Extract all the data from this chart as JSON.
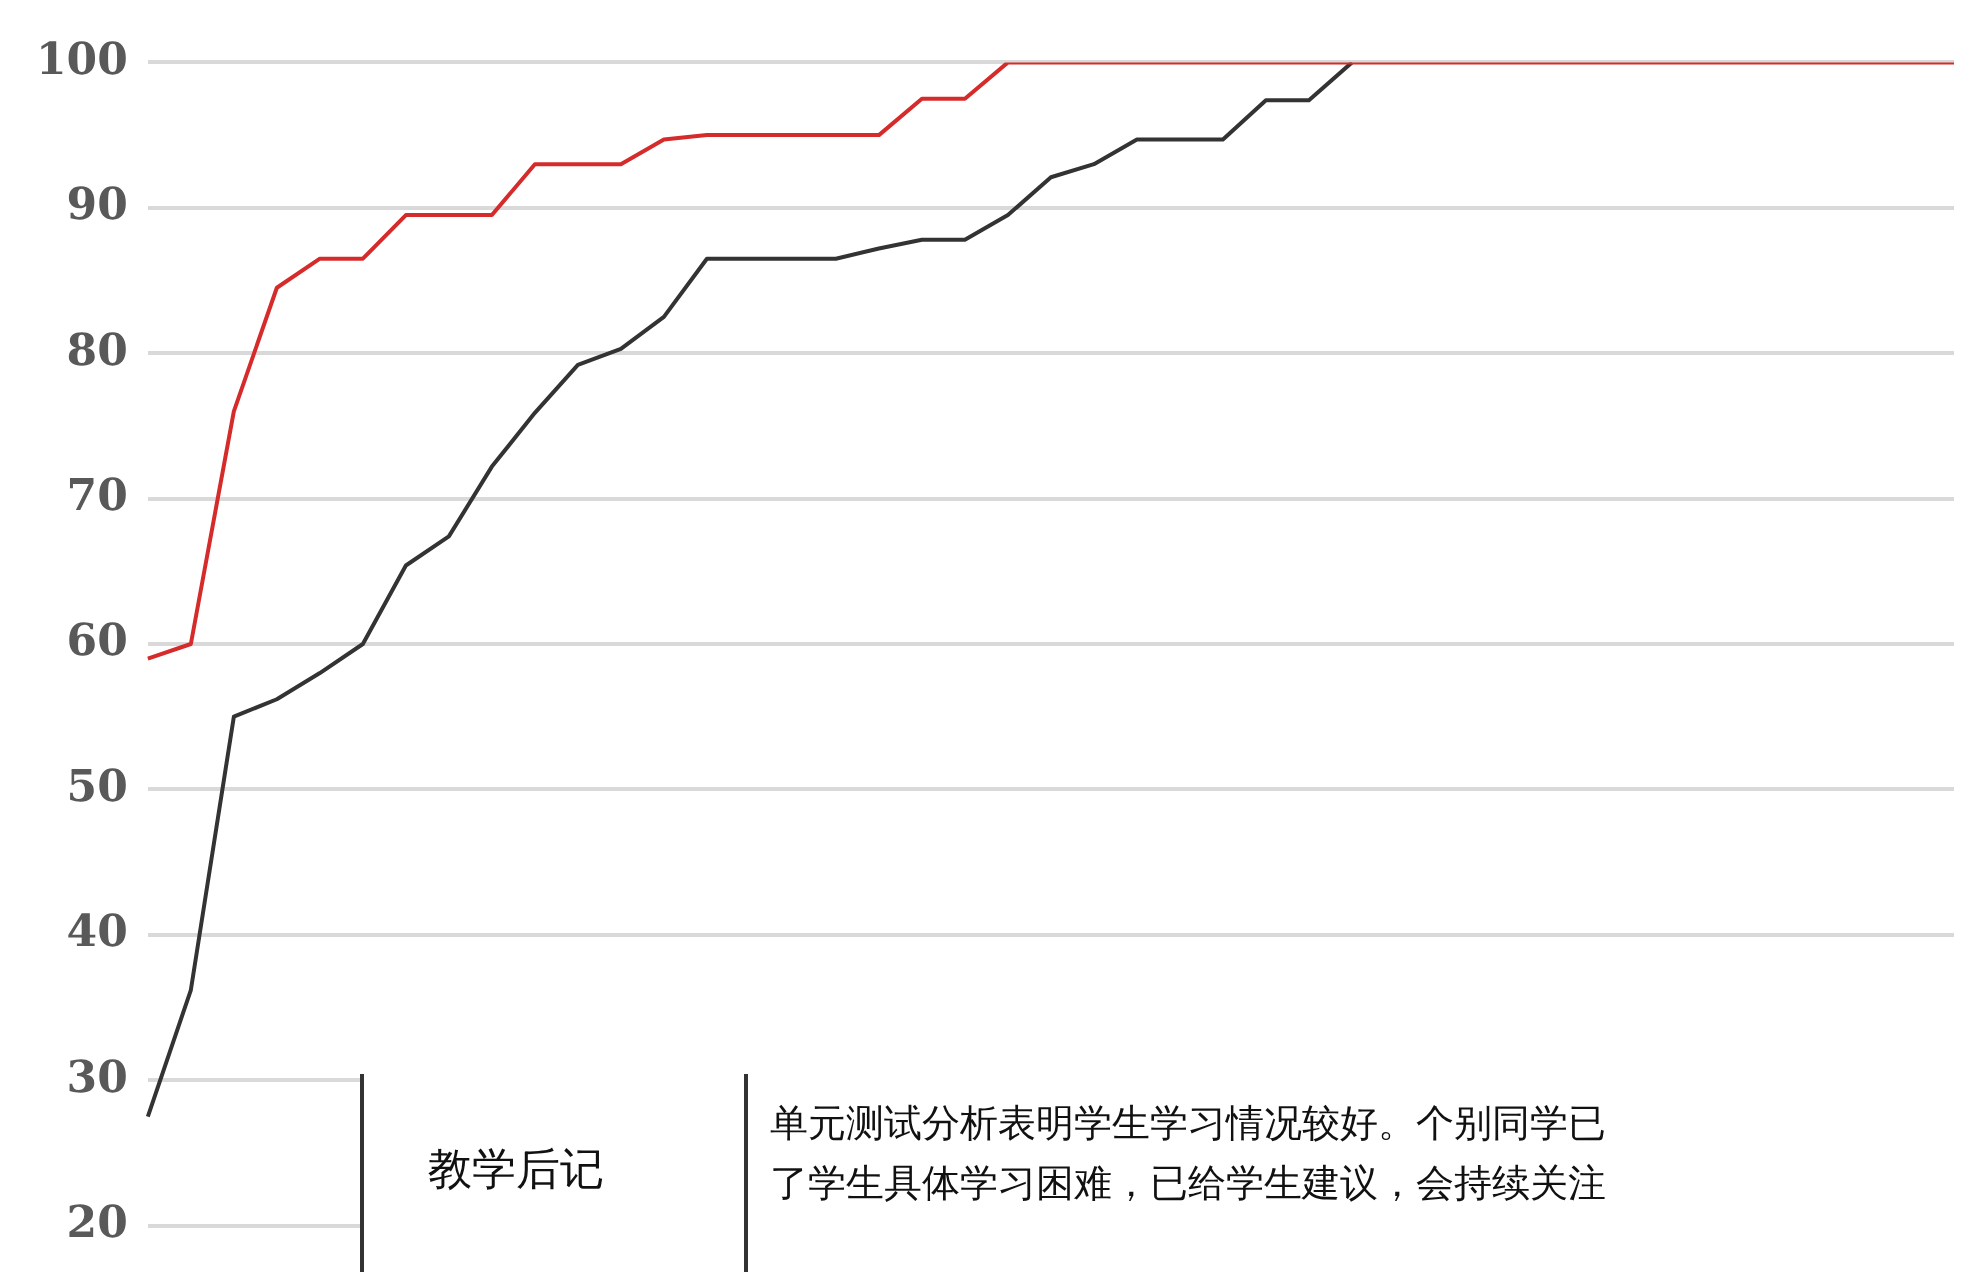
{
  "chart_data": {
    "type": "line",
    "categories": [
      null,
      null,
      null,
      null,
      null,
      null,
      null,
      null,
      null,
      null,
      null,
      null,
      null,
      null,
      null,
      null,
      null,
      null,
      null,
      null,
      null,
      null,
      null,
      null,
      null,
      null,
      null,
      null,
      null,
      null,
      null,
      null,
      null,
      null,
      null,
      null,
      null,
      null,
      null,
      null,
      null,
      null,
      null
    ],
    "series": [
      {
        "color": "#d62b2b",
        "values": [
          59,
          60,
          76,
          84.5,
          86.5,
          86.5,
          89.5,
          89.5,
          89.5,
          93,
          93,
          93,
          94.7,
          95,
          95,
          95,
          95,
          95,
          97.5,
          97.5,
          100,
          100,
          100,
          100,
          100,
          100,
          100,
          100,
          100,
          100,
          100,
          100,
          100,
          100,
          100,
          100,
          100,
          100,
          100,
          100,
          100,
          100,
          100
        ]
      },
      {
        "color": "#333333",
        "values": [
          27.5,
          36.2,
          55,
          56.2,
          58,
          60,
          65.4,
          67.4,
          72.2,
          75.9,
          79.2,
          80.3,
          82.5,
          86.5,
          86.5,
          86.5,
          86.5,
          87.2,
          87.8,
          87.8,
          89.5,
          92.1,
          93,
          94.7,
          94.7,
          94.7,
          97.4,
          97.4,
          100,
          null,
          null,
          null,
          null,
          null,
          null,
          null,
          null,
          null,
          null,
          null,
          null,
          null,
          null
        ]
      }
    ],
    "ylim": [
      20,
      100
    ],
    "yticks": [
      20,
      30,
      40,
      50,
      60,
      70,
      80,
      90,
      100
    ],
    "grid": "y",
    "tick_labels": "y",
    "marker": "none",
    "line_style": "solid",
    "legend": false,
    "annotations": [
      "教学后记",
      "单元测试分析表明学生学习情况较好。个别同学已",
      "了学生具体学习困难，已给学生建议，会持续关注"
    ]
  }
}
